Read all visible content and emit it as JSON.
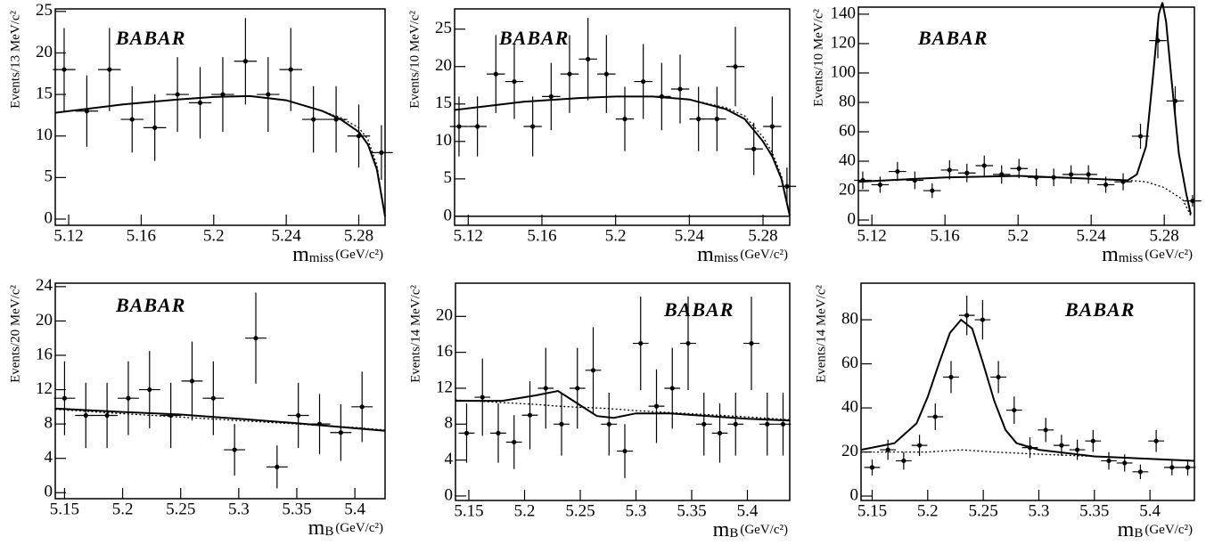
{
  "chart_data": [
    {
      "type": "errorbar",
      "logo": "BABAR",
      "y_label": "Events/13 MeV/c²",
      "x_label": {
        "symbol": "m",
        "subscript": "miss",
        "unit": "(GeV/c²)"
      },
      "xlim": [
        5.1126,
        5.2945
      ],
      "ylim": [
        -0.75,
        25.3
      ],
      "xticks": [
        5.12,
        5.16,
        5.2,
        5.24,
        5.28
      ],
      "yticks": [
        0,
        5,
        10,
        15,
        20,
        25
      ],
      "x": [
        5.1175,
        5.13,
        5.1425,
        5.155,
        5.1675,
        5.18,
        5.1925,
        5.205,
        5.2175,
        5.23,
        5.2425,
        5.255,
        5.2675,
        5.28,
        5.2925
      ],
      "values": [
        18,
        13,
        18,
        12,
        11,
        15,
        14,
        15,
        19,
        15,
        18,
        12,
        12,
        10,
        8
      ],
      "errors": [
        5,
        4.3,
        5,
        4,
        4,
        4.5,
        4.3,
        4.5,
        5.2,
        4.5,
        5,
        4,
        4,
        3.8,
        3.3
      ],
      "curves": [
        {
          "style": "solid",
          "x": [
            5.1126,
            5.15,
            5.18,
            5.2,
            5.22,
            5.24,
            5.26,
            5.27,
            5.28,
            5.285,
            5.29,
            5.2945
          ],
          "values": [
            12.8,
            13.8,
            14.4,
            14.7,
            14.8,
            14.3,
            13.0,
            12.0,
            10.5,
            9.0,
            6.0,
            0.3
          ]
        },
        {
          "style": "dotted",
          "x": [
            5.1126,
            5.15,
            5.18,
            5.2,
            5.22,
            5.24,
            5.26,
            5.27,
            5.28,
            5.285,
            5.29,
            5.2945
          ],
          "values": [
            12.8,
            13.8,
            14.4,
            14.7,
            14.8,
            14.3,
            13.0,
            12.2,
            11.0,
            9.6,
            6.5,
            0.3
          ]
        }
      ]
    },
    {
      "type": "errorbar",
      "logo": "BABAR",
      "y_label": "Events/10 MeV/c²",
      "zero_line": true,
      "x_label": {
        "symbol": "m",
        "subscript": "miss",
        "unit": "(GeV/c²)"
      },
      "xlim": [
        5.1126,
        5.2945
      ],
      "ylim": [
        -1.2,
        27.7
      ],
      "xticks": [
        5.12,
        5.16,
        5.2,
        5.24,
        5.28
      ],
      "yticks": [
        0,
        5,
        10,
        15,
        20,
        25
      ],
      "x": [
        5.115,
        5.125,
        5.135,
        5.145,
        5.155,
        5.165,
        5.175,
        5.185,
        5.195,
        5.205,
        5.215,
        5.225,
        5.235,
        5.245,
        5.255,
        5.265,
        5.275,
        5.285,
        5.293
      ],
      "values": [
        12,
        12,
        19,
        18,
        12,
        16,
        19,
        21,
        19,
        13,
        18,
        16,
        17,
        13,
        13,
        20,
        9,
        12,
        4
      ],
      "errors": [
        4,
        4,
        5.2,
        5,
        4,
        4.5,
        5.2,
        5.5,
        5.2,
        4.3,
        5,
        4.5,
        4.6,
        4.3,
        4.3,
        5.3,
        3.5,
        4,
        2.5
      ],
      "curves": [
        {
          "style": "solid",
          "x": [
            5.1126,
            5.15,
            5.18,
            5.2,
            5.22,
            5.24,
            5.26,
            5.27,
            5.28,
            5.285,
            5.29,
            5.2945
          ],
          "values": [
            14.2,
            15.3,
            15.8,
            16.0,
            16.0,
            15.6,
            14.3,
            13.0,
            10.0,
            8.0,
            5.0,
            0.1
          ]
        },
        {
          "style": "dotted",
          "x": [
            5.1126,
            5.15,
            5.18,
            5.2,
            5.22,
            5.24,
            5.26,
            5.27,
            5.28,
            5.285,
            5.29,
            5.2945
          ],
          "values": [
            14.2,
            15.3,
            15.8,
            16.0,
            16.0,
            15.6,
            14.5,
            13.4,
            10.6,
            8.5,
            5.4,
            0.1
          ]
        }
      ]
    },
    {
      "type": "errorbar",
      "logo": "BABAR",
      "y_label": "Events/10 MeV/c²",
      "x_label": {
        "symbol": "m",
        "subscript": "miss",
        "unit": "(GeV/c²)"
      },
      "xlim": [
        5.1126,
        5.2965
      ],
      "ylim": [
        -3.6,
        144.8
      ],
      "xticks": [
        5.12,
        5.16,
        5.2,
        5.24,
        5.28
      ],
      "yticks": [
        0,
        20,
        40,
        60,
        80,
        100,
        120,
        140
      ],
      "x": [
        5.115,
        5.1245,
        5.134,
        5.1435,
        5.153,
        5.1625,
        5.172,
        5.1815,
        5.191,
        5.2005,
        5.21,
        5.2195,
        5.229,
        5.2385,
        5.248,
        5.2575,
        5.267,
        5.2765,
        5.286,
        5.2955
      ],
      "values": [
        27,
        24,
        33,
        27,
        20,
        34,
        32,
        37,
        31,
        35,
        29,
        29,
        31,
        31,
        24,
        26,
        57,
        122,
        81,
        13
      ],
      "errors": [
        6,
        5.5,
        6.5,
        6,
        5,
        6.5,
        6.3,
        6.8,
        6.2,
        6.6,
        6,
        6,
        6.2,
        6.2,
        5.5,
        5.8,
        8.5,
        12,
        10,
        4
      ],
      "curves": [
        {
          "style": "solid",
          "x": [
            5.1126,
            5.16,
            5.2,
            5.24,
            5.26,
            5.265,
            5.27,
            5.274,
            5.277,
            5.279,
            5.281,
            5.284,
            5.288,
            5.292,
            5.2945
          ],
          "values": [
            26,
            29,
            30,
            28,
            27,
            31,
            50,
            100,
            140,
            148,
            135,
            95,
            45,
            18,
            4
          ]
        },
        {
          "style": "dotted",
          "x": [
            5.1126,
            5.16,
            5.2,
            5.24,
            5.26,
            5.27,
            5.28,
            5.29,
            5.2945
          ],
          "values": [
            26,
            29,
            30,
            28,
            27,
            26,
            22,
            14,
            3
          ]
        }
      ]
    },
    {
      "type": "errorbar",
      "logo": "BABAR",
      "y_label": "Events/20 MeV/c²",
      "x_label": {
        "symbol": "m",
        "subscript": "B",
        "unit": "(GeV/c²)"
      },
      "xlim": [
        5.142,
        5.426
      ],
      "ylim": [
        -0.7,
        24.4
      ],
      "xticks": [
        5.15,
        5.2,
        5.25,
        5.3,
        5.35,
        5.4
      ],
      "yticks": [
        0,
        4,
        8,
        12,
        16,
        20,
        24
      ],
      "x": [
        5.15,
        5.1683,
        5.1866,
        5.2049,
        5.2232,
        5.2415,
        5.2598,
        5.2781,
        5.2964,
        5.3147,
        5.333,
        5.3513,
        5.3696,
        5.3879,
        5.4062
      ],
      "values": [
        11,
        9,
        9,
        11,
        12,
        9,
        13,
        11,
        5,
        18,
        3,
        9,
        8,
        7,
        10
      ],
      "errors": [
        4.3,
        3.8,
        3.8,
        4.3,
        4.5,
        3.8,
        4.6,
        4.3,
        3,
        5.3,
        2.5,
        3.8,
        3.5,
        3.3,
        4.1
      ],
      "curves": [
        {
          "style": "solid",
          "x": [
            5.142,
            5.2,
            5.25,
            5.3,
            5.35,
            5.4,
            5.426
          ],
          "values": [
            9.8,
            9.4,
            9.1,
            8.6,
            8.1,
            7.5,
            7.2
          ]
        },
        {
          "style": "dotted",
          "x": [
            5.142,
            5.2,
            5.25,
            5.3,
            5.35,
            5.4,
            5.426
          ],
          "values": [
            9.7,
            9.2,
            8.8,
            8.4,
            8.0,
            7.6,
            7.3
          ]
        }
      ]
    },
    {
      "type": "errorbar",
      "logo": "BABAR",
      "y_label": "Events/14 MeV/c²",
      "x_label": {
        "symbol": "m",
        "subscript": "B",
        "unit": "(GeV/c²)"
      },
      "xlim": [
        5.138,
        5.438
      ],
      "ylim": [
        -0.5,
        23.7
      ],
      "xticks": [
        5.15,
        5.2,
        5.25,
        5.3,
        5.35,
        5.4
      ],
      "yticks": [
        0,
        4,
        8,
        12,
        16,
        20
      ],
      "x": [
        5.148,
        5.1622,
        5.1764,
        5.1906,
        5.2048,
        5.219,
        5.2332,
        5.2474,
        5.2616,
        5.2758,
        5.29,
        5.3042,
        5.3184,
        5.3326,
        5.3468,
        5.361,
        5.3752,
        5.3894,
        5.4036,
        5.4178,
        5.432
      ],
      "values": [
        7,
        11,
        7,
        6,
        9,
        12,
        8,
        12,
        14,
        8,
        5,
        17,
        10,
        12,
        17,
        8,
        7,
        8,
        17,
        8,
        8
      ],
      "errors": [
        3.3,
        4.3,
        3.3,
        3,
        3.8,
        4.5,
        3.5,
        4.5,
        4.8,
        3.5,
        3,
        5.2,
        4.1,
        4.5,
        5.2,
        3.5,
        3.3,
        3.5,
        5.2,
        3.5,
        3.5
      ],
      "curves": [
        {
          "style": "solid",
          "x": [
            5.138,
            5.18,
            5.21,
            5.23,
            5.245,
            5.265,
            5.28,
            5.3,
            5.33,
            5.4,
            5.438
          ],
          "values": [
            10.6,
            10.6,
            11.2,
            11.7,
            10.5,
            8.9,
            8.7,
            9.2,
            9.2,
            8.6,
            8.4
          ]
        },
        {
          "style": "dotted",
          "x": [
            5.138,
            5.18,
            5.21,
            5.23,
            5.245,
            5.265,
            5.28,
            5.3,
            5.33,
            5.4,
            5.438
          ],
          "values": [
            10.7,
            10.4,
            10.2,
            10.0,
            9.9,
            9.8,
            9.7,
            9.5,
            9.3,
            8.8,
            8.5
          ]
        }
      ]
    },
    {
      "type": "errorbar",
      "logo": "BABAR",
      "y_label": "Events/14 MeV/c²",
      "x_label": {
        "symbol": "m",
        "subscript": "B",
        "unit": "(GeV/c²)"
      },
      "xlim": [
        5.14,
        5.44
      ],
      "ylim": [
        -2,
        96.6
      ],
      "xticks": [
        5.15,
        5.2,
        5.25,
        5.3,
        5.35,
        5.4
      ],
      "yticks": [
        0,
        20,
        40,
        60,
        80
      ],
      "x": [
        5.15,
        5.1642,
        5.1784,
        5.1926,
        5.2068,
        5.221,
        5.2352,
        5.2494,
        5.2636,
        5.2778,
        5.292,
        5.3062,
        5.3204,
        5.3346,
        5.3488,
        5.363,
        5.3772,
        5.3914,
        5.4056,
        5.4198,
        5.434
      ],
      "values": [
        13,
        21,
        16,
        23,
        36,
        54,
        82,
        80,
        54,
        39,
        22,
        30,
        23,
        21,
        25,
        16,
        15,
        11,
        25,
        13,
        13
      ],
      "errors": [
        3.6,
        4.6,
        4,
        4.8,
        6,
        7.3,
        9,
        9,
        7.3,
        6.2,
        4.7,
        5.5,
        4.8,
        4.6,
        5,
        4,
        3.9,
        3.3,
        5,
        3.6,
        3.6
      ],
      "curves": [
        {
          "style": "solid",
          "x": [
            5.14,
            5.17,
            5.19,
            5.2,
            5.21,
            5.22,
            5.23,
            5.24,
            5.25,
            5.26,
            5.27,
            5.28,
            5.3,
            5.35,
            5.44
          ],
          "values": [
            21,
            24,
            33,
            45,
            60,
            74,
            80,
            76,
            60,
            43,
            30,
            24,
            21,
            18,
            16
          ]
        },
        {
          "style": "dotted",
          "x": [
            5.14,
            5.2,
            5.23,
            5.26,
            5.3,
            5.35,
            5.44
          ],
          "values": [
            20,
            20,
            21,
            20,
            19,
            18,
            16
          ]
        }
      ]
    }
  ]
}
